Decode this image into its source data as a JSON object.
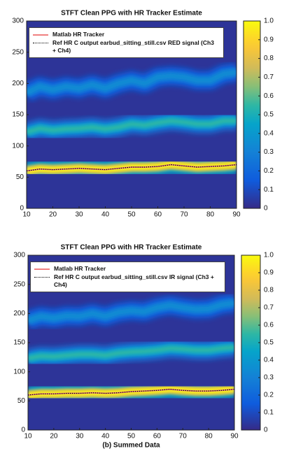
{
  "chart_data": [
    {
      "type": "spectrogram",
      "title": "STFT Clean PPG with HR Tracker Estimate",
      "xlim": [
        10,
        90
      ],
      "xticks": [
        10,
        20,
        30,
        40,
        50,
        60,
        70,
        80,
        90
      ],
      "ylim": [
        0,
        300
      ],
      "yticks": [
        0,
        50,
        100,
        150,
        200,
        250,
        300
      ],
      "clim": [
        0,
        1
      ],
      "cticks": [
        0,
        0.1,
        0.2,
        0.3,
        0.4,
        0.5,
        0.6,
        0.7,
        0.8,
        0.9,
        {
          "value": 1,
          "label": "1.0"
        }
      ],
      "colormap": "parula",
      "bands": [
        {
          "intensity": 1,
          "x": [
            10,
            15,
            20,
            25,
            30,
            35,
            40,
            45,
            50,
            55,
            60,
            65,
            70,
            75,
            80,
            85,
            90
          ],
          "values": [
            60,
            63,
            62,
            63,
            64,
            63,
            62,
            64,
            66,
            66,
            67,
            70,
            68,
            66,
            67,
            68,
            70
          ]
        },
        {
          "intensity": 0.55,
          "x": [
            10,
            15,
            20,
            25,
            30,
            35,
            40,
            45,
            50,
            55,
            60,
            65,
            70,
            75,
            80,
            85,
            90
          ],
          "values": [
            122,
            128,
            125,
            127,
            128,
            130,
            127,
            130,
            135,
            133,
            137,
            140,
            138,
            135,
            135,
            140,
            140
          ]
        },
        {
          "intensity": 0.35,
          "x": [
            10,
            15,
            20,
            25,
            30,
            35,
            40,
            45,
            50,
            55,
            60,
            65,
            70,
            75,
            80,
            85,
            90
          ],
          "values": [
            185,
            195,
            190,
            195,
            192,
            198,
            192,
            200,
            205,
            200,
            210,
            212,
            210,
            205,
            205,
            215,
            218
          ]
        }
      ],
      "series": [
        {
          "name": "Matlab HR Tracker",
          "color": "#f08080",
          "style": "solid",
          "x": [
            10,
            15,
            20,
            25,
            30,
            35,
            40,
            45,
            50,
            55,
            60,
            65,
            70,
            75,
            80,
            85,
            90
          ],
          "values": [
            60,
            63,
            62,
            63,
            64,
            63,
            62,
            64,
            66,
            66,
            67,
            70,
            68,
            66,
            67,
            68,
            70
          ]
        },
        {
          "name": "Ref HR C output earbud_sitting_still.csv RED signal (Ch3 + Ch4)",
          "color": "#000000",
          "style": "dotted",
          "x": [
            10,
            15,
            20,
            25,
            30,
            35,
            40,
            45,
            50,
            55,
            60,
            65,
            70,
            75,
            80,
            85,
            90
          ],
          "values": [
            60,
            63,
            62,
            63,
            64,
            63,
            62,
            64,
            66,
            66,
            67,
            70,
            68,
            66,
            67,
            68,
            70
          ]
        }
      ]
    },
    {
      "type": "spectrogram",
      "title": "STFT Clean PPG with HR Tracker Estimate",
      "xlabel": "(b) Summed Data",
      "xlim": [
        10,
        90
      ],
      "xticks": [
        10,
        20,
        30,
        40,
        50,
        60,
        70,
        80,
        90
      ],
      "ylim": [
        0,
        300
      ],
      "yticks": [
        0,
        50,
        100,
        150,
        200,
        250,
        300
      ],
      "clim": [
        0,
        1
      ],
      "cticks": [
        0,
        0.1,
        0.2,
        0.3,
        0.4,
        0.5,
        0.6,
        0.7,
        0.8,
        0.9,
        {
          "value": 1,
          "label": "1.0"
        }
      ],
      "colormap": "parula",
      "bands": [
        {
          "intensity": 1,
          "x": [
            10,
            15,
            20,
            25,
            30,
            35,
            40,
            45,
            50,
            55,
            60,
            65,
            70,
            75,
            80,
            85,
            90
          ],
          "values": [
            60,
            62,
            62,
            63,
            63,
            64,
            63,
            64,
            66,
            67,
            68,
            70,
            68,
            67,
            67,
            68,
            70
          ]
        },
        {
          "intensity": 0.55,
          "x": [
            10,
            15,
            20,
            25,
            30,
            35,
            40,
            45,
            50,
            55,
            60,
            65,
            70,
            75,
            80,
            85,
            90
          ],
          "values": [
            123,
            127,
            126,
            128,
            130,
            130,
            128,
            132,
            134,
            135,
            137,
            140,
            139,
            137,
            137,
            140,
            142
          ]
        },
        {
          "intensity": 0.35,
          "x": [
            10,
            15,
            20,
            25,
            30,
            35,
            40,
            45,
            50,
            55,
            60,
            65,
            70,
            75,
            80,
            85,
            90
          ],
          "values": [
            188,
            195,
            192,
            196,
            195,
            200,
            195,
            202,
            205,
            203,
            210,
            214,
            210,
            207,
            208,
            215,
            218
          ]
        }
      ],
      "series": [
        {
          "name": "Matlab HR Tracker",
          "color": "#f08080",
          "style": "solid",
          "x": [
            10,
            15,
            20,
            25,
            30,
            35,
            40,
            45,
            50,
            55,
            60,
            65,
            70,
            75,
            80,
            85,
            90
          ],
          "values": [
            60,
            62,
            62,
            63,
            63,
            64,
            63,
            64,
            66,
            67,
            68,
            70,
            68,
            67,
            67,
            68,
            70
          ]
        },
        {
          "name": "Ref HR C output earbud_sitting_still.csv IR signal (Ch3 + Ch4)",
          "color": "#000000",
          "style": "dotted",
          "x": [
            10,
            15,
            20,
            25,
            30,
            35,
            40,
            45,
            50,
            55,
            60,
            65,
            70,
            75,
            80,
            85,
            90
          ],
          "values": [
            60,
            62,
            62,
            63,
            63,
            64,
            63,
            64,
            66,
            67,
            68,
            70,
            68,
            67,
            67,
            68,
            70
          ]
        }
      ]
    }
  ]
}
